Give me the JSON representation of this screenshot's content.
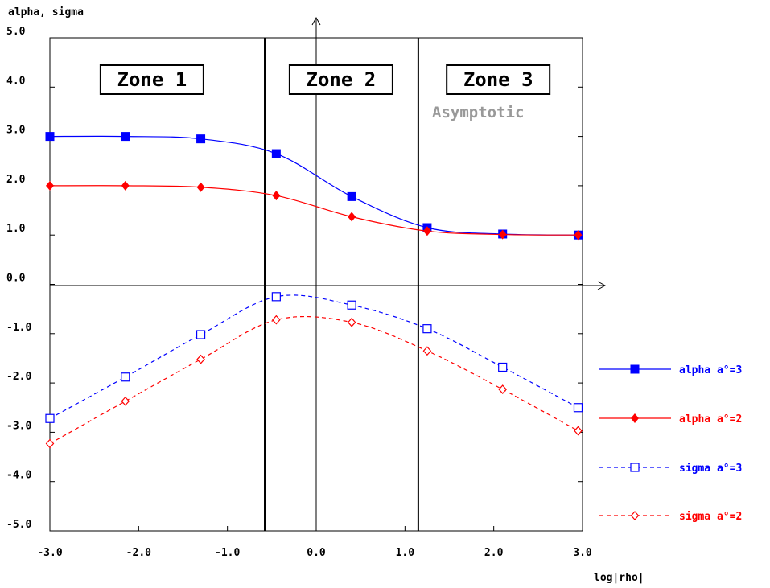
{
  "chart_data": {
    "type": "line",
    "ylabel": "alpha, sigma",
    "xlabel": "log|rho|",
    "xlim": [
      -3.0,
      3.0
    ],
    "ylim": [
      -5.0,
      5.0
    ],
    "x_ticks": [
      "-3.0",
      "-2.0",
      "-1.0",
      "0.0",
      "1.0",
      "2.0",
      "3.0"
    ],
    "y_ticks": [
      "5.0",
      "4.0",
      "3.0",
      "2.0",
      "1.0",
      "0.0",
      "-1.0",
      "-2.0",
      "-3.0",
      "-4.0",
      "-5.0"
    ],
    "zone_boundaries": [
      -0.58,
      1.15
    ],
    "zones": [
      {
        "label": "Zone 1",
        "x_center": -1.85
      },
      {
        "label": "Zone 2",
        "x_center": 0.28
      },
      {
        "label": "Zone 3",
        "x_center": 2.05
      }
    ],
    "annotation": "Asymptotic",
    "series": [
      {
        "name": "alpha a°=3",
        "color": "#0000ff",
        "style": "solid",
        "marker": "filled-square",
        "x": [
          -3.0,
          -2.15,
          -1.3,
          -0.45,
          0.4,
          1.25,
          2.1,
          2.95
        ],
        "y": [
          3.0,
          3.0,
          2.95,
          2.65,
          1.78,
          1.15,
          1.02,
          1.0
        ]
      },
      {
        "name": "alpha a°=2",
        "color": "#ff0000",
        "style": "solid",
        "marker": "filled-diamond",
        "x": [
          -3.0,
          -2.15,
          -1.3,
          -0.45,
          0.4,
          1.25,
          2.1,
          2.95
        ],
        "y": [
          2.0,
          2.0,
          1.97,
          1.8,
          1.37,
          1.08,
          1.01,
          1.0
        ]
      },
      {
        "name": "sigma a°=3",
        "color": "#0000ff",
        "style": "dashed",
        "marker": "open-square",
        "x": [
          -3.0,
          -2.15,
          -1.3,
          -0.45,
          0.4,
          1.25,
          2.1,
          2.95
        ],
        "y": [
          -2.72,
          -1.88,
          -1.02,
          -0.25,
          -0.42,
          -0.9,
          -1.68,
          -2.5
        ]
      },
      {
        "name": "sigma a°=2",
        "color": "#ff0000",
        "style": "dashed",
        "marker": "open-diamond",
        "x": [
          -3.0,
          -2.15,
          -1.3,
          -0.45,
          0.4,
          1.25,
          2.1,
          2.95
        ],
        "y": [
          -3.23,
          -2.37,
          -1.52,
          -0.72,
          -0.77,
          -1.35,
          -2.13,
          -2.97
        ]
      }
    ],
    "legend_position": "right",
    "grid": false
  }
}
